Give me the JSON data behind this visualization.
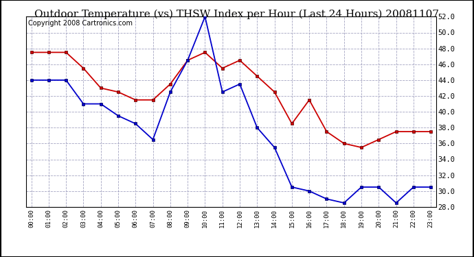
{
  "title": "Outdoor Temperature (vs) THSW Index per Hour (Last 24 Hours) 20081107",
  "copyright": "Copyright 2008 Cartronics.com",
  "hours": [
    "00:00",
    "01:00",
    "02:00",
    "03:00",
    "04:00",
    "05:00",
    "06:00",
    "07:00",
    "08:00",
    "09:00",
    "10:00",
    "11:00",
    "12:00",
    "13:00",
    "14:00",
    "15:00",
    "16:00",
    "17:00",
    "18:00",
    "19:00",
    "20:00",
    "21:00",
    "22:00",
    "23:00"
  ],
  "temp": [
    44.0,
    44.0,
    44.0,
    41.0,
    41.0,
    39.5,
    38.5,
    36.5,
    42.5,
    46.5,
    52.0,
    42.5,
    43.5,
    38.0,
    35.5,
    30.5,
    30.0,
    29.0,
    28.5,
    30.5,
    30.5,
    28.5,
    30.5,
    30.5
  ],
  "thsw": [
    47.5,
    47.5,
    47.5,
    45.5,
    43.0,
    42.5,
    41.5,
    41.5,
    43.5,
    46.5,
    47.5,
    45.5,
    46.5,
    44.5,
    42.5,
    38.5,
    41.5,
    37.5,
    36.0,
    35.5,
    36.5,
    37.5,
    37.5,
    37.5
  ],
  "temp_color": "#0000cc",
  "thsw_color": "#cc0000",
  "ylim_min": 28.0,
  "ylim_max": 52.0,
  "ytick_step": 2.0,
  "title_fontsize": 11,
  "copyright_fontsize": 7
}
